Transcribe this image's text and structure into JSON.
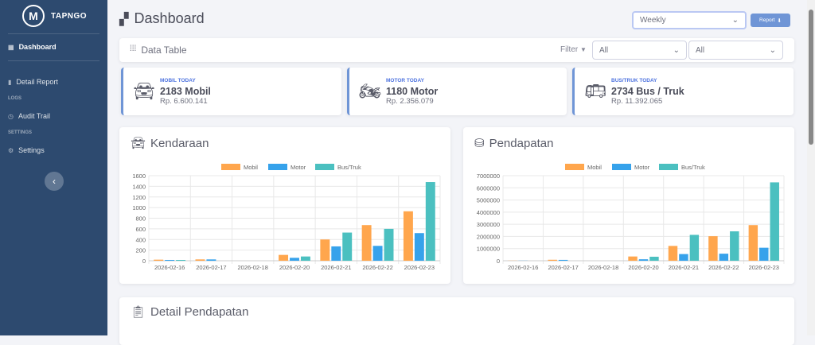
{
  "brand": {
    "name": "TAPNGO",
    "logo_letter": "M"
  },
  "sidebar": {
    "items": [
      {
        "label": "Dashboard"
      },
      {
        "label": "Detail Report"
      },
      {
        "label": "Audit Trail"
      },
      {
        "label": "Settings"
      }
    ],
    "sections": {
      "logs": "LOGS",
      "settings": "SETTINGS"
    }
  },
  "header": {
    "title": "Dashboard",
    "period": "Weekly",
    "report_label": "Report"
  },
  "datatable": {
    "title": "Data Table",
    "filter_label": "Filter",
    "filter1": "All",
    "filter2": "All"
  },
  "stats": [
    {
      "label": "MOBIL TODAY",
      "value": "2183 Mobil",
      "amount": "Rp. 6.600.141"
    },
    {
      "label": "MOTOR TODAY",
      "value": "1180 Motor",
      "amount": "Rp. 2.356.079"
    },
    {
      "label": "BUS/TRUK TODAY",
      "value": "2734 Bus / Truk",
      "amount": "Rp. 11.392.065"
    }
  ],
  "detail": {
    "title": "Detail Pendapatan"
  },
  "colors": {
    "mobil": "#ffa64d",
    "motor": "#36a2eb",
    "bus": "#4bc0c0"
  },
  "chart_data": [
    {
      "type": "bar",
      "title": "Kendaraan",
      "categories": [
        "2026-02-16",
        "2026-02-17",
        "2026-02-18",
        "2026-02-20",
        "2026-02-21",
        "2026-02-22",
        "2026-02-23"
      ],
      "series": [
        {
          "name": "Mobil",
          "values": [
            20,
            25,
            0,
            110,
            400,
            670,
            930
          ]
        },
        {
          "name": "Motor",
          "values": [
            15,
            25,
            0,
            55,
            270,
            280,
            520
          ]
        },
        {
          "name": "Bus/Truk",
          "values": [
            15,
            0,
            0,
            80,
            530,
            600,
            1480
          ]
        }
      ],
      "ylim": [
        0,
        1600
      ],
      "yticks": [
        0,
        200,
        400,
        600,
        800,
        1000,
        1200,
        1400,
        1600
      ],
      "legend": "top"
    },
    {
      "type": "bar",
      "title": "Pendapatan",
      "categories": [
        "2026-02-16",
        "2026-02-17",
        "2026-02-18",
        "2026-02-20",
        "2026-02-21",
        "2026-02-22",
        "2026-02-23"
      ],
      "series": [
        {
          "name": "Mobil",
          "values": [
            10000,
            80000,
            0,
            350000,
            1220000,
            2020000,
            2930000
          ]
        },
        {
          "name": "Motor",
          "values": [
            10000,
            70000,
            0,
            120000,
            550000,
            580000,
            1070000
          ]
        },
        {
          "name": "Bus/Truk",
          "values": [
            0,
            0,
            0,
            330000,
            2130000,
            2420000,
            6450000
          ]
        }
      ],
      "ylim": [
        0,
        7000000
      ],
      "yticks": [
        0,
        1000000,
        2000000,
        3000000,
        4000000,
        5000000,
        6000000,
        7000000
      ],
      "legend": "top"
    }
  ]
}
